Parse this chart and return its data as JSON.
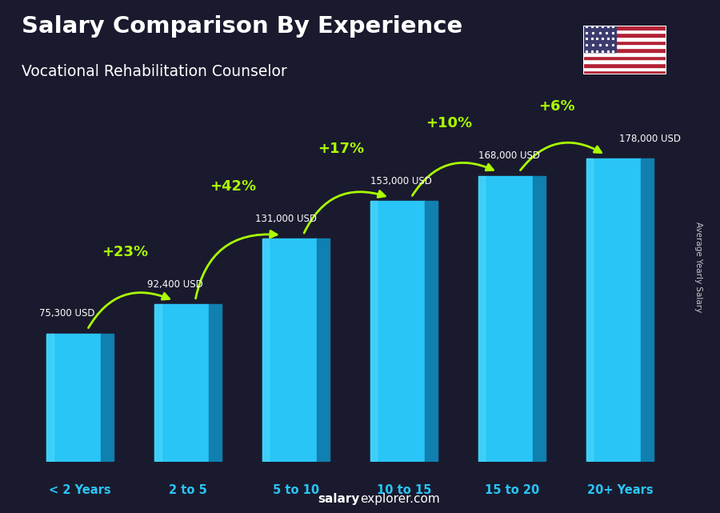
{
  "title": "Salary Comparison By Experience",
  "subtitle": "Vocational Rehabilitation Counselor",
  "categories": [
    "< 2 Years",
    "2 to 5",
    "5 to 10",
    "10 to 15",
    "15 to 20",
    "20+ Years"
  ],
  "values": [
    75300,
    92400,
    131000,
    153000,
    168000,
    178000
  ],
  "salary_labels": [
    "75,300 USD",
    "92,400 USD",
    "131,000 USD",
    "153,000 USD",
    "168,000 USD",
    "178,000 USD"
  ],
  "pct_changes": [
    "+23%",
    "+42%",
    "+17%",
    "+10%",
    "+6%"
  ],
  "bar_face_color": "#29C5F6",
  "bar_side_color": "#1080B0",
  "bar_top_color": "#80DEFF",
  "bg_color": "#1a1a2e",
  "title_color": "#FFFFFF",
  "subtitle_color": "#FFFFFF",
  "salary_label_color": "#FFFFFF",
  "pct_color": "#AAFF00",
  "cat_label_color": "#29C5F6",
  "footer_bold": "salary",
  "footer_rest": "explorer.com",
  "ylabel_text": "Average Yearly Salary",
  "ylim": [
    0,
    220000
  ],
  "bar_width": 0.5,
  "side_depth": 0.12
}
